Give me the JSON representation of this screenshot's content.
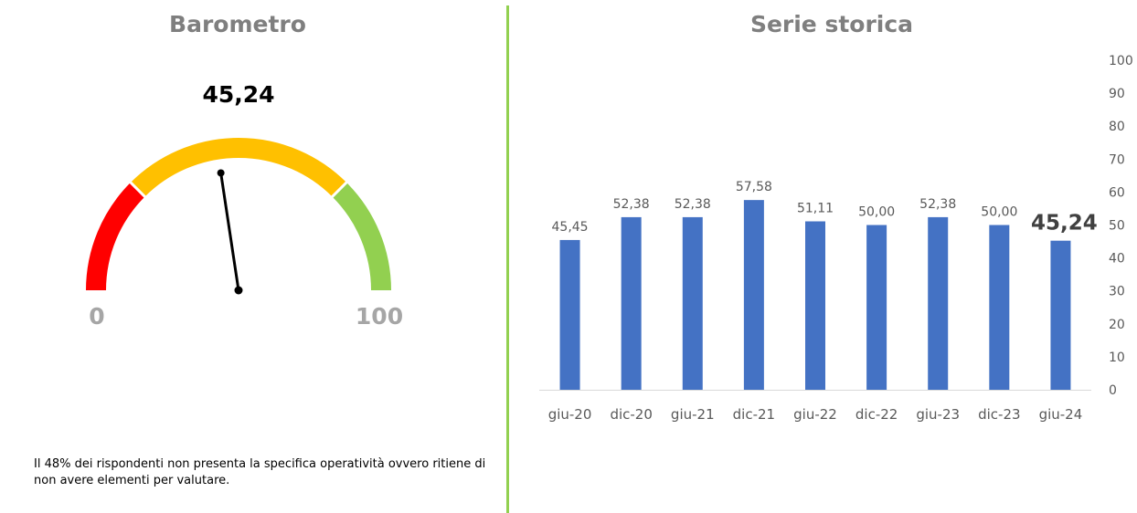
{
  "colors": {
    "title": "#7f7f7f",
    "divider": "#92d050",
    "bar": "#4472c4",
    "axis_text": "#595959",
    "gauge_red": "#ff0000",
    "gauge_yellow": "#ffc000",
    "gauge_green": "#92d050",
    "gauge_labels": "#a6a6a6"
  },
  "barometro": {
    "title": "Barometro",
    "value_label": "45,24",
    "min_label": "0",
    "max_label": "100",
    "value": 45.24,
    "min": 0,
    "max": 100,
    "bands": [
      {
        "from": 0,
        "to": 25,
        "color": "#ff0000"
      },
      {
        "from": 25,
        "to": 75,
        "color": "#ffc000"
      },
      {
        "from": 75,
        "to": 100,
        "color": "#92d050"
      }
    ]
  },
  "serie_storica": {
    "title": "Serie storica"
  },
  "footnote": "Il 48% dei rispondenti non presenta la specifica operatività ovvero ritiene di non avere elementi per valutare.",
  "chart_data": [
    {
      "type": "gauge",
      "title": "Barometro",
      "value": 45.24,
      "range": [
        0,
        100
      ],
      "bands": [
        {
          "from": 0,
          "to": 25,
          "color": "red"
        },
        {
          "from": 25,
          "to": 75,
          "color": "yellow"
        },
        {
          "from": 75,
          "to": 100,
          "color": "green"
        }
      ]
    },
    {
      "type": "bar",
      "title": "Serie storica",
      "categories": [
        "giu-20",
        "dic-20",
        "giu-21",
        "dic-21",
        "giu-22",
        "dic-22",
        "giu-23",
        "dic-23",
        "giu-24"
      ],
      "values": [
        45.45,
        52.38,
        52.38,
        57.58,
        51.11,
        50.0,
        52.38,
        50.0,
        45.24
      ],
      "data_labels": [
        "45,45",
        "52,38",
        "52,38",
        "57,58",
        "51,11",
        "50,00",
        "52,38",
        "50,00",
        "45,24"
      ],
      "highlight_last_label": true,
      "ylim": [
        0,
        100
      ],
      "yticks": [
        0,
        10,
        20,
        30,
        40,
        50,
        60,
        70,
        80,
        90,
        100
      ],
      "yaxis_position": "right",
      "grid": false,
      "legend": "none",
      "xlabel": "",
      "ylabel": ""
    }
  ]
}
